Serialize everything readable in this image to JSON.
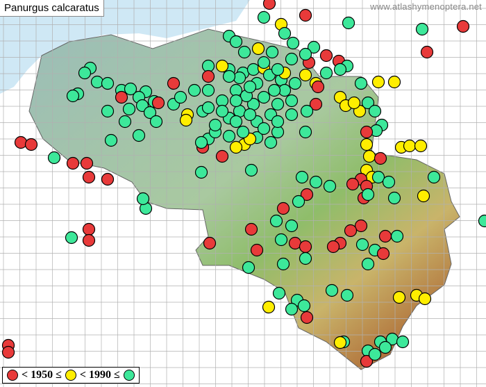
{
  "title": "Panurgus calcaratus",
  "watermark": "www.atlashymenoptera.net",
  "legend": {
    "items": [
      {
        "label": "< 1950 ≤",
        "color": "#e83a3a"
      },
      {
        "label": "< 1990 ≤",
        "color": "#ffee00"
      },
      {
        "label": "",
        "color": "#3de89a"
      }
    ]
  },
  "colors": {
    "sea": "#cfe8f5",
    "grid": "#b0b0b0",
    "country": "#9fbdb6"
  }
}
